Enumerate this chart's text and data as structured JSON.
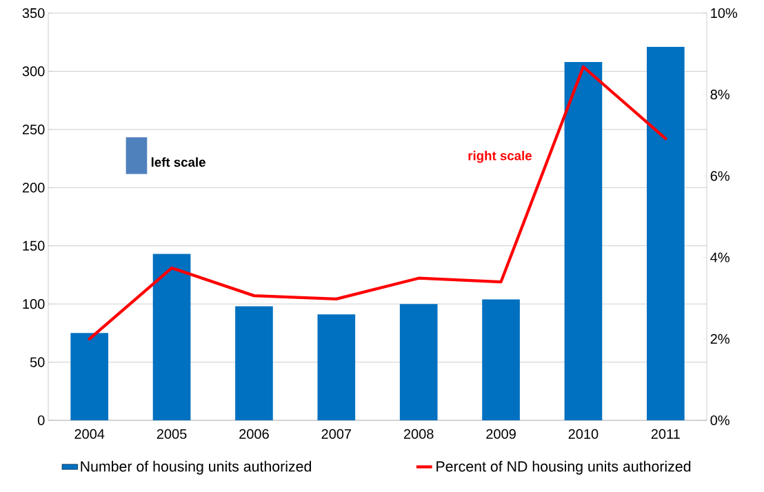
{
  "chart_data": {
    "type": "bar",
    "categories": [
      "2004",
      "2005",
      "2006",
      "2007",
      "2008",
      "2009",
      "2010",
      "2011"
    ],
    "series": [
      {
        "name": "Number of housing units authorized",
        "color": "#0070c0",
        "values": [
          75,
          143,
          98,
          91,
          100,
          104,
          308,
          321
        ]
      },
      {
        "name": "Percent of ND housing units authorized",
        "type": "line",
        "axis": "y2",
        "color": "#ff0000",
        "values": [
          2.0,
          3.74,
          3.06,
          2.98,
          3.49,
          3.4,
          8.68,
          6.92
        ]
      }
    ],
    "ylim": [
      0,
      350
    ],
    "yticks": [
      0,
      50,
      100,
      150,
      200,
      250,
      300,
      350
    ],
    "y2lim": [
      0,
      10
    ],
    "y2ticks": [
      {
        "value": 0,
        "label": "0%"
      },
      {
        "value": 2,
        "label": "2%"
      },
      {
        "value": 4,
        "label": "4%"
      },
      {
        "value": 6,
        "label": "6%"
      },
      {
        "value": 8,
        "label": "8%"
      },
      {
        "value": 10,
        "label": "10%"
      }
    ],
    "annotations": [
      "left scale",
      "right scale"
    ],
    "grid": "y",
    "legend": "bottom",
    "marker": "none",
    "line_style": "solid"
  }
}
